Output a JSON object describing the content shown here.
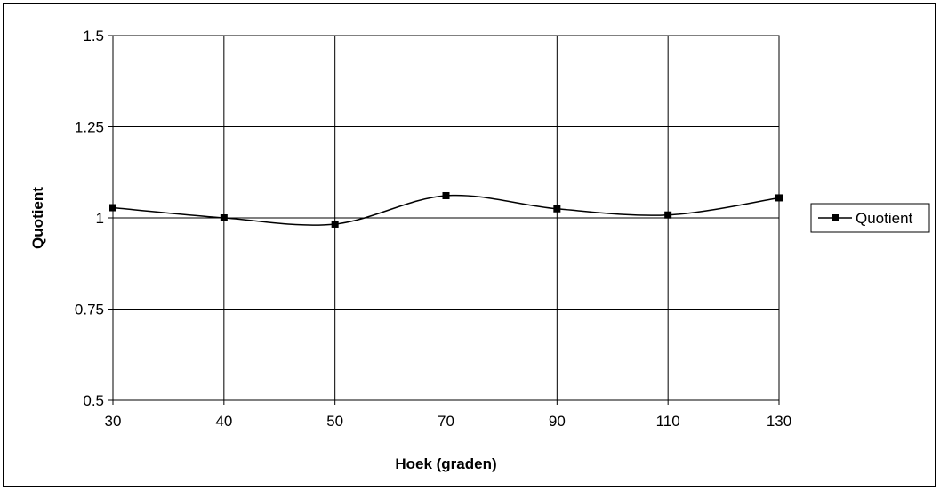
{
  "chart_data": {
    "type": "line",
    "title": "",
    "xlabel": "Hoek (graden)",
    "ylabel": "Quotient",
    "categories": [
      "30",
      "40",
      "50",
      "70",
      "90",
      "110",
      "130"
    ],
    "series": [
      {
        "name": "Quotient",
        "values": [
          1.028,
          1.0,
          0.983,
          1.061,
          1.025,
          1.008,
          1.055
        ]
      }
    ],
    "ylim": [
      0.5,
      1.5
    ],
    "yticks": [
      "1.5",
      "1.25",
      "1",
      "0.75",
      "0.5"
    ],
    "ytick_values": [
      1.5,
      1.25,
      1.0,
      0.75,
      0.5
    ],
    "grid": true,
    "smoothed": true,
    "legend_position": "right",
    "series_color": "#000000",
    "marker": "square"
  }
}
